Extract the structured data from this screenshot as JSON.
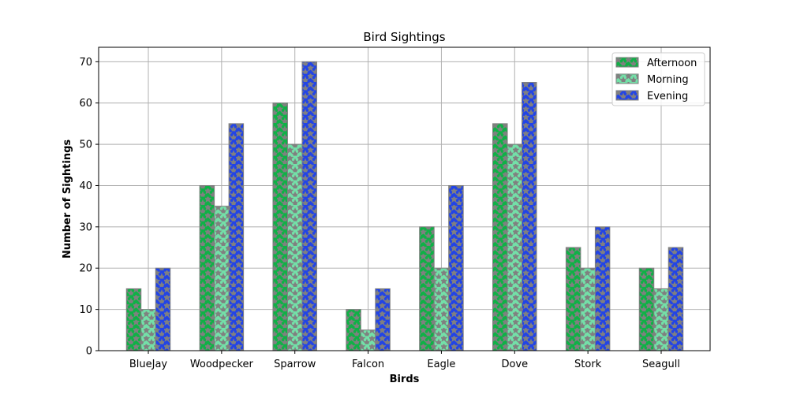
{
  "chart_data": {
    "type": "bar",
    "title": "Bird Sightings",
    "xlabel": "Birds",
    "ylabel": "Number of Sightings",
    "categories": [
      "BlueJay",
      "Woodpecker",
      "Sparrow",
      "Falcon",
      "Eagle",
      "Dove",
      "Stork",
      "Seagull"
    ],
    "series": [
      {
        "name": "Afternoon",
        "color": "#0fb146",
        "values": [
          15,
          40,
          60,
          10,
          30,
          55,
          25,
          20
        ]
      },
      {
        "name": "Morning",
        "color": "#73e0a8",
        "values": [
          10,
          35,
          50,
          5,
          20,
          50,
          20,
          15
        ]
      },
      {
        "name": "Evening",
        "color": "#2244e6",
        "values": [
          20,
          55,
          70,
          15,
          40,
          65,
          30,
          25
        ]
      }
    ],
    "ylim": [
      0,
      73.5
    ],
    "yticks": [
      0,
      10,
      20,
      30,
      40,
      50,
      60,
      70
    ],
    "grid": true,
    "legend_position": "top-right",
    "bar_edge_color": "#808080",
    "hatch": "star",
    "hatch_color": "#808080"
  }
}
